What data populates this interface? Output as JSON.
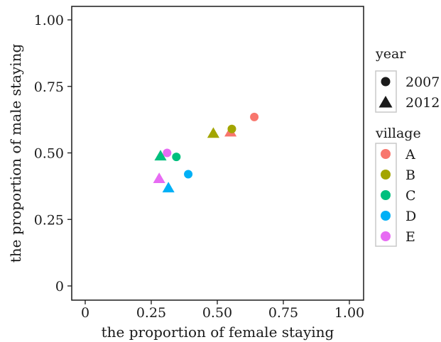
{
  "chart_data": {
    "type": "scatter",
    "xlabel": "the proportion of female staying",
    "ylabel": "the proportion of male staying",
    "xlim": [
      0,
      1
    ],
    "ylim": [
      0,
      1
    ],
    "xticks": [
      0,
      0.25,
      0.5,
      0.75,
      1
    ],
    "yticks": [
      0,
      0.25,
      0.5,
      0.75,
      1
    ],
    "xtick_labels": [
      "0",
      "0.25",
      "0.50",
      "0.75",
      "1.00"
    ],
    "ytick_labels": [
      "0",
      "0.25",
      "0.50",
      "0.75",
      "1.00"
    ],
    "grid": false,
    "legend_position": "right",
    "legend": {
      "shape_title": "year",
      "shapes": [
        {
          "label": "2007",
          "shape": "circle"
        },
        {
          "label": "2012",
          "shape": "triangle"
        }
      ],
      "color_title": "village",
      "colors": [
        {
          "label": "A",
          "color": "#F8766D"
        },
        {
          "label": "B",
          "color": "#A3A500"
        },
        {
          "label": "C",
          "color": "#00BF7D"
        },
        {
          "label": "D",
          "color": "#00B0F6"
        },
        {
          "label": "E",
          "color": "#E76BF3"
        }
      ]
    },
    "points": [
      {
        "village": "A",
        "year": "2007",
        "x": 0.64,
        "y": 0.635
      },
      {
        "village": "A",
        "year": "2012",
        "x": 0.55,
        "y": 0.58
      },
      {
        "village": "B",
        "year": "2007",
        "x": 0.555,
        "y": 0.59
      },
      {
        "village": "B",
        "year": "2012",
        "x": 0.485,
        "y": 0.575
      },
      {
        "village": "C",
        "year": "2007",
        "x": 0.345,
        "y": 0.485
      },
      {
        "village": "C",
        "year": "2012",
        "x": 0.285,
        "y": 0.49
      },
      {
        "village": "D",
        "year": "2007",
        "x": 0.39,
        "y": 0.42
      },
      {
        "village": "D",
        "year": "2012",
        "x": 0.315,
        "y": 0.37
      },
      {
        "village": "E",
        "year": "2007",
        "x": 0.31,
        "y": 0.5
      },
      {
        "village": "E",
        "year": "2012",
        "x": 0.28,
        "y": 0.405
      }
    ]
  }
}
